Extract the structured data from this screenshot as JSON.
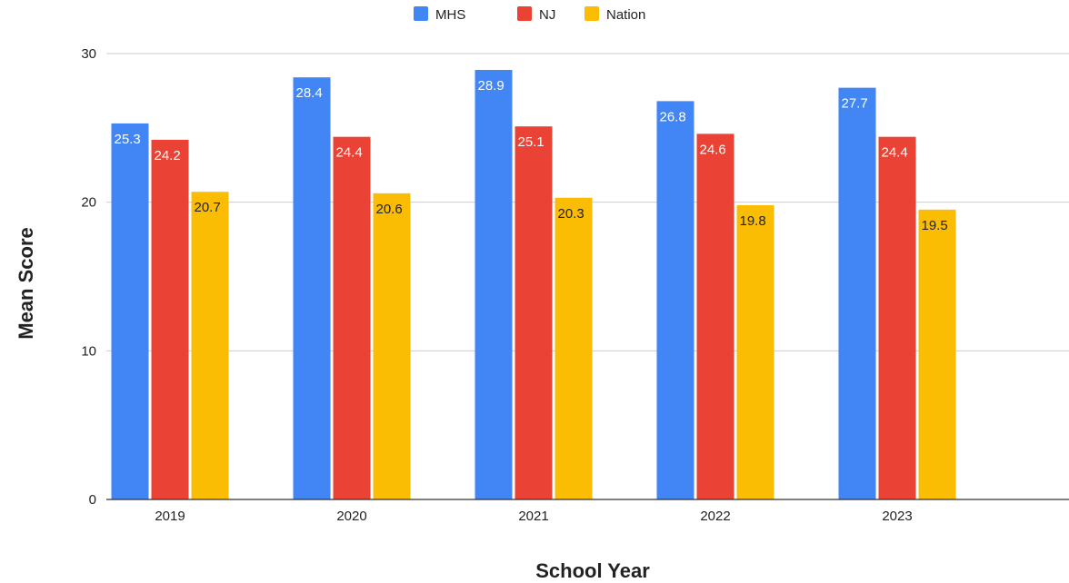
{
  "chart_data": {
    "type": "bar",
    "title": "",
    "xlabel": "School Year",
    "ylabel": "Mean Score",
    "categories": [
      "2019",
      "2020",
      "2021",
      "2022",
      "2023"
    ],
    "series": [
      {
        "name": "MHS",
        "color": "#4285f4",
        "label_color": "#ffffff",
        "values": [
          25.3,
          28.4,
          28.9,
          26.8,
          27.7
        ]
      },
      {
        "name": "NJ",
        "color": "#ea4335",
        "label_color": "#ffffff",
        "values": [
          24.2,
          24.4,
          25.1,
          24.6,
          24.4
        ]
      },
      {
        "name": "Nation",
        "color": "#fbbc04",
        "label_color": "#222222",
        "values": [
          20.7,
          20.6,
          20.3,
          19.8,
          19.5
        ]
      }
    ],
    "ylim": [
      0,
      30
    ],
    "yticks": [
      0,
      10,
      20,
      30
    ],
    "grid": true,
    "legend_position": "top-center",
    "data_labels": true
  }
}
